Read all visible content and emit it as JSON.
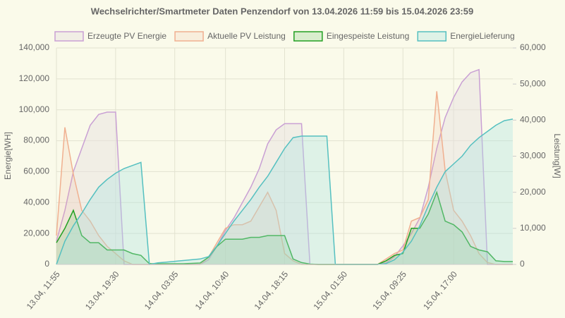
{
  "chart_data": {
    "type": "line",
    "title": "Wechselrichter/Smartmeter Daten Penzendorf von 13.04.2026 11:59 bis 15.04.2026 23:59",
    "y_label": "Energie[WH]",
    "y2_label": "Leistung[W]",
    "grid": true,
    "legend": "top",
    "categories": [
      "13.04, 11:55",
      null,
      null,
      null,
      null,
      null,
      null,
      "13.04, 19:30",
      null,
      null,
      null,
      null,
      null,
      null,
      "14.04, 03:05",
      null,
      null,
      null,
      null,
      null,
      "14.04, 10:40",
      null,
      null,
      null,
      null,
      null,
      null,
      "14.04, 18:15",
      null,
      null,
      null,
      null,
      null,
      null,
      "15.04, 01:50",
      null,
      null,
      null,
      null,
      null,
      null,
      "15.04, 09:25",
      null,
      null,
      null,
      null,
      null,
      "15.04, 17:00",
      null,
      null,
      null,
      null,
      null,
      null,
      null
    ],
    "ylim": [
      0,
      140000
    ],
    "yticks": [
      0,
      {
        "value": 20000,
        "label": "20,000"
      },
      {
        "value": 40000,
        "label": "40,000"
      },
      {
        "value": 60000,
        "label": "60,000"
      },
      {
        "value": 80000,
        "label": "80,000"
      },
      {
        "value": 100000,
        "label": "100,000"
      },
      {
        "value": 120000,
        "label": "120,000"
      },
      {
        "value": 140000,
        "label": "140,000"
      }
    ],
    "y2lim": [
      0,
      60000
    ],
    "y2ticks": [
      0,
      {
        "value": 10000,
        "label": "10,000"
      },
      {
        "value": 20000,
        "label": "20,000"
      },
      {
        "value": 30000,
        "label": "30,000"
      },
      {
        "value": 40000,
        "label": "40,000"
      },
      {
        "value": 50000,
        "label": "50,000"
      },
      {
        "value": 60000,
        "label": "60,000"
      }
    ],
    "series": [
      {
        "name": "Erzeugte PV Energie",
        "color": "#c9a0d4",
        "fill": "rgba(230,225,225,0.45)",
        "values": [
          15000,
          35000,
          60000,
          75000,
          90000,
          97000,
          98500,
          98500,
          0,
          0,
          0,
          0,
          0,
          0,
          0,
          0,
          0,
          0,
          3000,
          12000,
          22000,
          30000,
          40000,
          50000,
          62000,
          78000,
          87000,
          91000,
          91000,
          91000,
          0,
          0,
          0,
          0,
          0,
          0,
          0,
          0,
          0,
          1000,
          5000,
          12000,
          20000,
          30000,
          50000,
          75000,
          95000,
          108000,
          118000,
          124000,
          126000,
          0,
          0,
          0,
          0
        ]
      },
      {
        "name": "Aktuelle PV Leistung",
        "color": "#f0b090",
        "fill": "rgba(240,176,144,0.15)",
        "axis": "y2",
        "values": [
          8000,
          38000,
          25000,
          15000,
          12000,
          8000,
          5000,
          3000,
          1000,
          0,
          0,
          0,
          0,
          0,
          0,
          0,
          0,
          0,
          2000,
          6000,
          10000,
          11000,
          11000,
          12000,
          16000,
          20000,
          15000,
          3000,
          1000,
          0,
          0,
          0,
          0,
          0,
          0,
          0,
          0,
          0,
          0,
          1500,
          3000,
          4000,
          12000,
          13000,
          18000,
          48000,
          26000,
          15000,
          12000,
          8000,
          3000,
          500,
          0,
          0,
          0
        ]
      },
      {
        "name": "Eingespeiste Leistung",
        "color": "#22a022",
        "fill": "rgba(120,200,120,0.25)",
        "axis": "y2",
        "values": [
          6000,
          10000,
          15000,
          8000,
          6000,
          6000,
          4000,
          4000,
          4000,
          3000,
          2500,
          200,
          200,
          200,
          200,
          200,
          300,
          400,
          2000,
          5000,
          7000,
          7000,
          7000,
          7500,
          7500,
          8000,
          8000,
          8000,
          1500,
          500,
          100,
          0,
          0,
          0,
          0,
          0,
          0,
          0,
          0,
          1000,
          2500,
          3000,
          10000,
          10000,
          14000,
          20000,
          12000,
          11000,
          9000,
          5000,
          4000,
          3500,
          1000,
          800,
          800
        ]
      },
      {
        "name": "EnergieLieferung",
        "color": "#55c0c0",
        "fill": "rgba(170,225,225,0.35)",
        "values": [
          0,
          15000,
          25000,
          33000,
          42000,
          50000,
          55000,
          59000,
          62000,
          64000,
          66000,
          0,
          1000,
          1500,
          2000,
          2500,
          3000,
          3500,
          5000,
          12000,
          20000,
          28000,
          35000,
          42000,
          50000,
          57000,
          66000,
          75000,
          82000,
          83000,
          83000,
          83000,
          83000,
          0,
          0,
          0,
          0,
          0,
          0,
          500,
          3000,
          8000,
          15000,
          25000,
          38000,
          50000,
          60000,
          65000,
          70000,
          77000,
          82000,
          86000,
          90000,
          93000,
          94000
        ]
      }
    ]
  }
}
